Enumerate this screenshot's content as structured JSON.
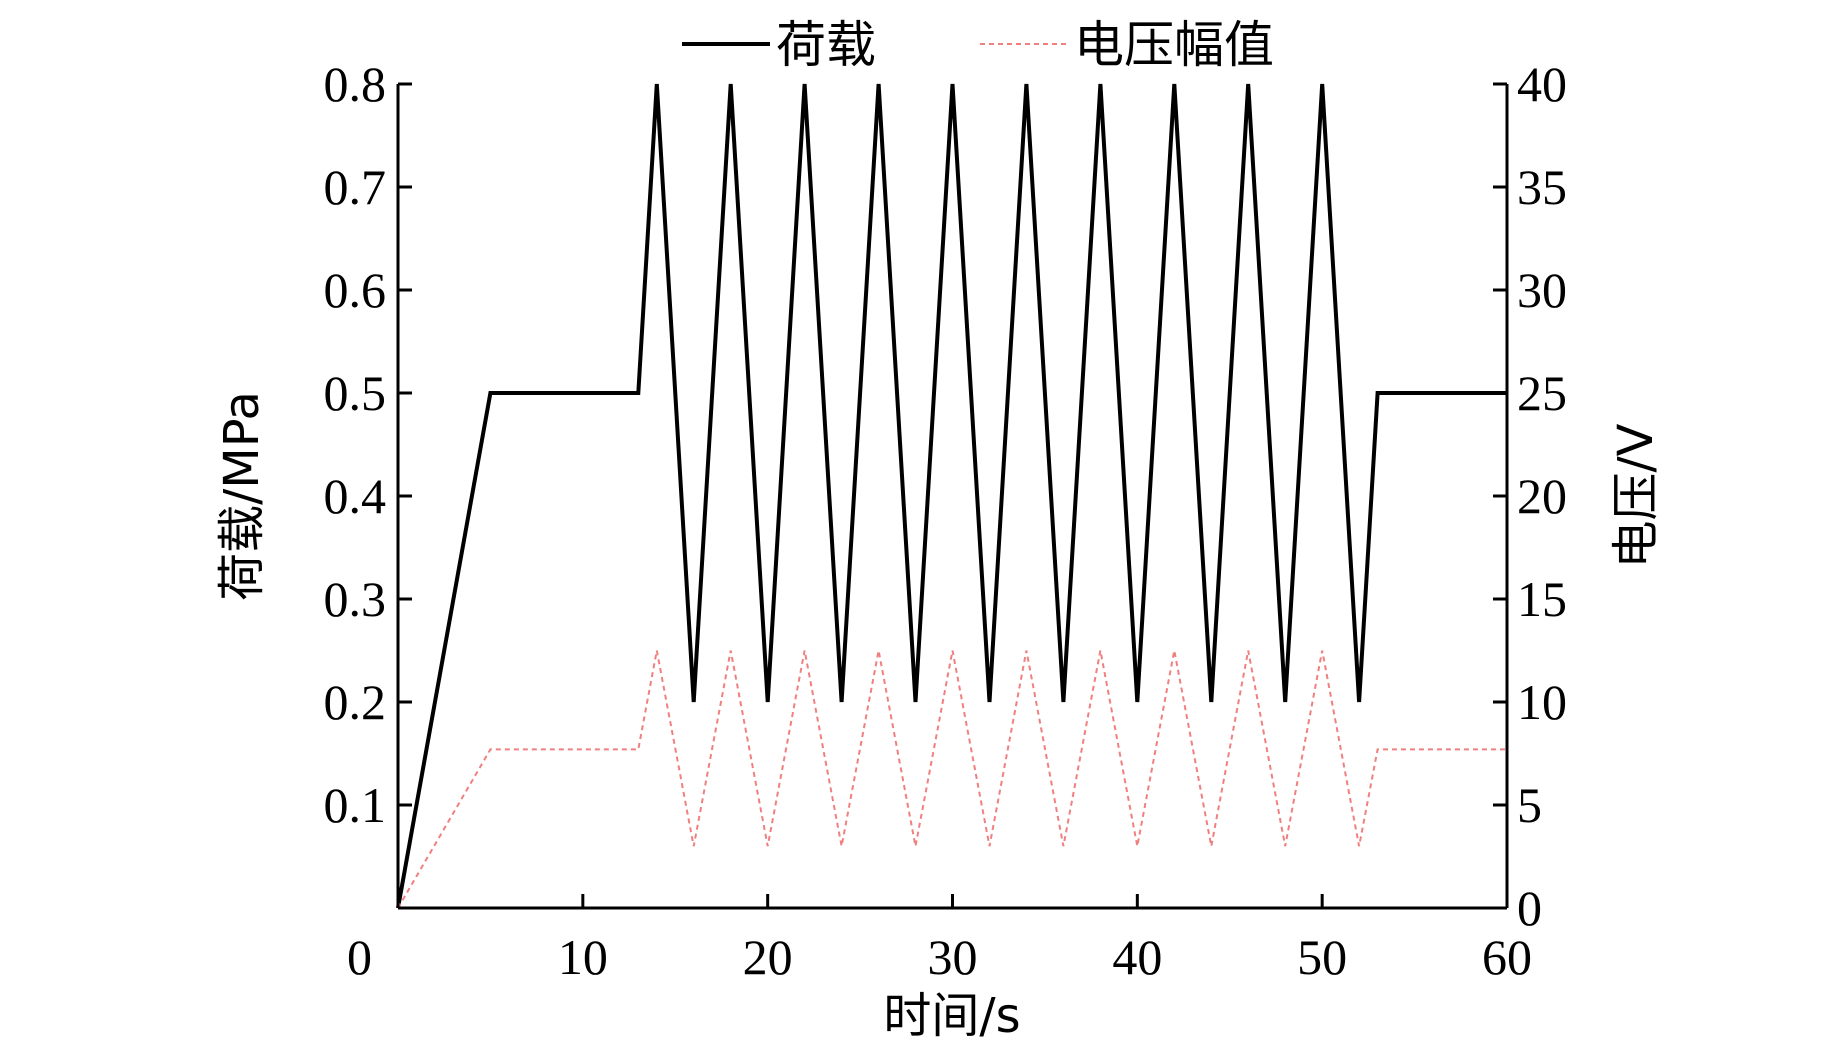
{
  "chart_data": {
    "type": "line",
    "xlabel": "时间/s",
    "ylabel_left": "荷载/MPa",
    "ylabel_right": "电压/V",
    "xlim": [
      0,
      60
    ],
    "ylim_left": [
      0,
      0.8
    ],
    "ylim_right": [
      0,
      40
    ],
    "x_ticks": [
      "0",
      "10",
      "20",
      "30",
      "40",
      "50",
      "60"
    ],
    "y_left_ticks": [
      "0",
      "0.1",
      "0.2",
      "0.3",
      "0.4",
      "0.5",
      "0.6",
      "0.7",
      "0.8"
    ],
    "y_right_ticks": [
      "0",
      "5",
      "10",
      "15",
      "20",
      "25",
      "30",
      "35",
      "40"
    ],
    "grid": false,
    "legend_position": "top",
    "series": [
      {
        "name": "荷载",
        "axis": "left",
        "color": "#000000",
        "style": "solid",
        "x": [
          0,
          5,
          13,
          14,
          16,
          18,
          20,
          22,
          24,
          26,
          28,
          30,
          32,
          34,
          36,
          38,
          40,
          42,
          44,
          46,
          48,
          50,
          52,
          53,
          60
        ],
        "y": [
          0,
          0.5,
          0.5,
          0.8,
          0.2,
          0.8,
          0.2,
          0.8,
          0.2,
          0.8,
          0.2,
          0.8,
          0.2,
          0.8,
          0.2,
          0.8,
          0.2,
          0.8,
          0.2,
          0.8,
          0.2,
          0.8,
          0.2,
          0.5,
          0.5
        ]
      },
      {
        "name": "电压幅值",
        "axis": "right",
        "color": "#f08080",
        "style": "dashed",
        "x": [
          0,
          5,
          13,
          14,
          16,
          18,
          20,
          22,
          24,
          26,
          28,
          30,
          32,
          34,
          36,
          38,
          40,
          42,
          44,
          46,
          48,
          50,
          52,
          53,
          60
        ],
        "y": [
          0,
          7.7,
          7.7,
          12.5,
          3,
          12.5,
          3,
          12.5,
          3,
          12.5,
          3,
          12.5,
          3,
          12.5,
          3,
          12.5,
          3,
          12.5,
          3,
          12.5,
          3,
          12.5,
          3,
          7.7,
          7.7
        ]
      }
    ]
  }
}
